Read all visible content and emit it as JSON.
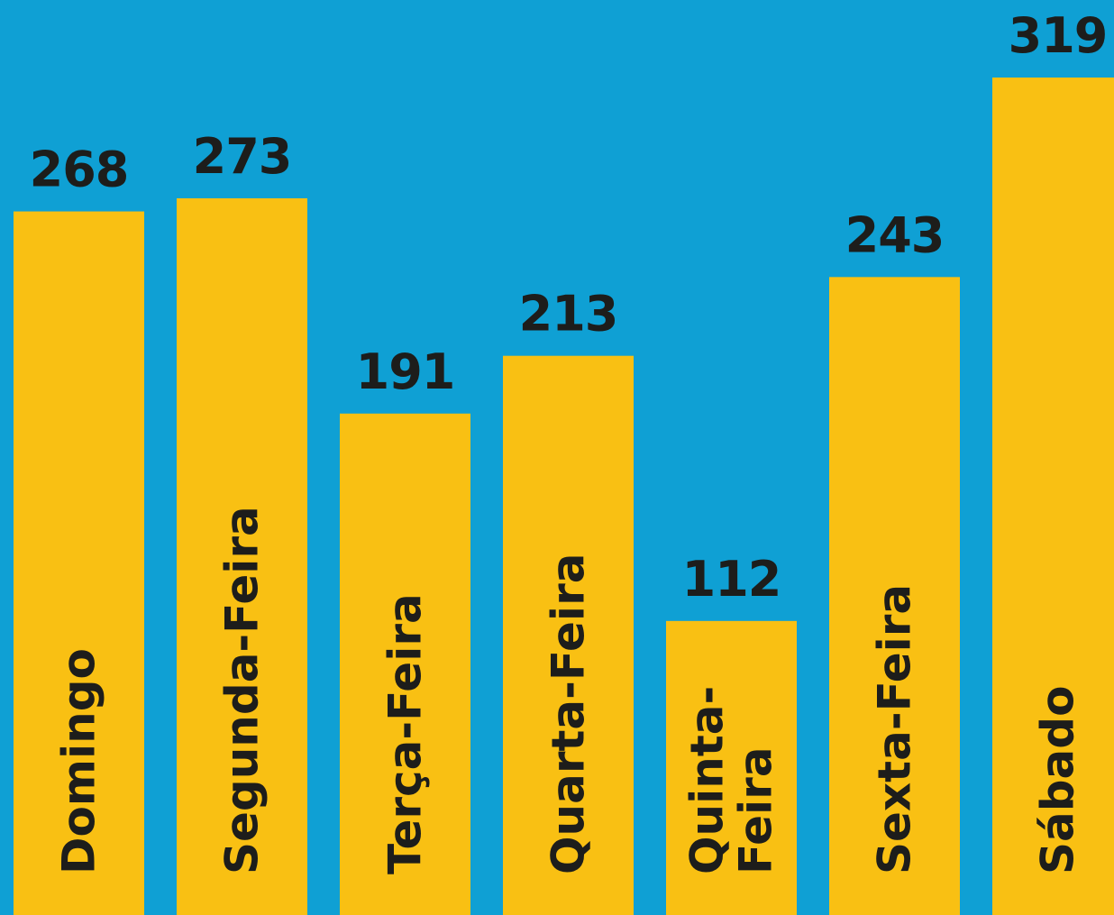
{
  "chart_data": {
    "type": "bar",
    "categories": [
      "Domingo",
      "Segunda-Feira",
      "Terça-Feira",
      "Quarta-Feira",
      "Quinta-Feira",
      "Sexta-Feira",
      "Sábado"
    ],
    "values": [
      268,
      273,
      191,
      213,
      112,
      243,
      319
    ],
    "color": "#f9c013"
  }
}
